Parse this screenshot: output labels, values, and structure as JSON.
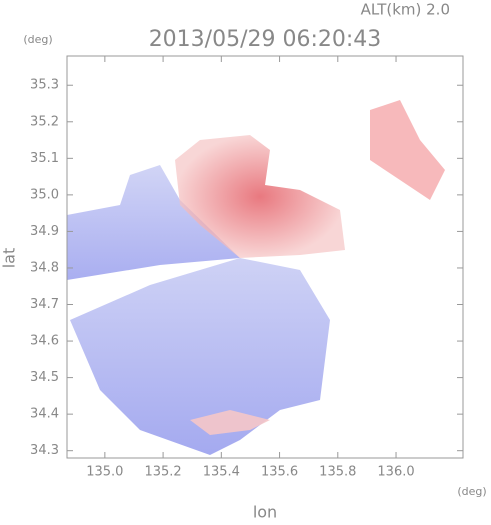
{
  "chart_data": {
    "type": "image",
    "title": "2013/05/29 06:20:43",
    "subtitle": "ALT(km) 2.0",
    "x_label": "lon",
    "y_label": "lat",
    "x_unit": "(deg)",
    "y_unit": "(deg)",
    "xlim": [
      134.87,
      136.23
    ],
    "ylim": [
      34.28,
      35.38
    ],
    "xticks": [
      {
        "value": 135,
        "label": "135.0"
      },
      135.2,
      135.4,
      135.6,
      135.8,
      {
        "value": 136,
        "label": "136.0"
      }
    ],
    "yticks": [
      35.3,
      35.2,
      35.1,
      {
        "value": 35,
        "label": "35.0"
      },
      34.9,
      34.8,
      34.7,
      34.6,
      34.5,
      34.4,
      34.3
    ]
  }
}
